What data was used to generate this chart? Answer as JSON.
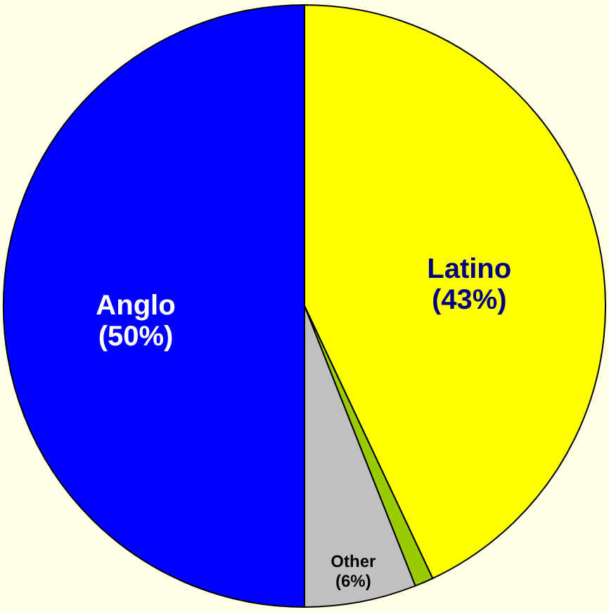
{
  "chart_data": {
    "type": "pie",
    "categories": [
      "Latino",
      null,
      "Other",
      "Anglo"
    ],
    "values": [
      43,
      1,
      6,
      50
    ],
    "value_labels": [
      "(43%)",
      null,
      "(6%)",
      "(50%)"
    ],
    "colors": [
      "#ffff00",
      "#99cc00",
      "#c0c0c0",
      "#0000ff"
    ]
  }
}
